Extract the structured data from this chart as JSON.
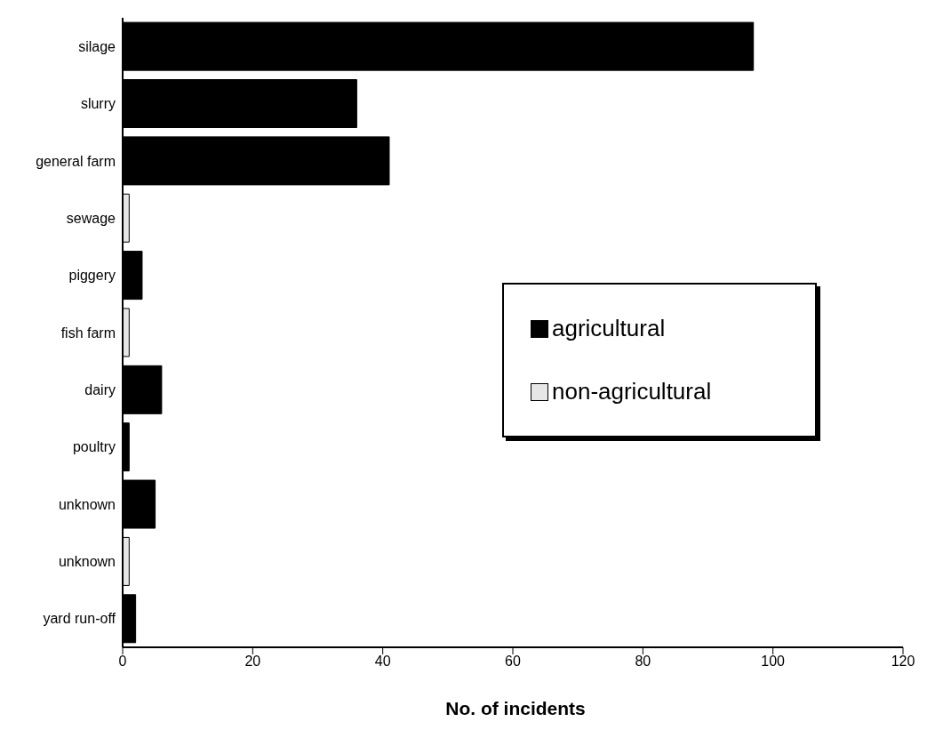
{
  "chart_data": {
    "type": "bar",
    "orientation": "horizontal",
    "stacked": true,
    "xlabel": "No. of incidents",
    "categories": [
      "silage",
      "slurry",
      "general farm",
      "sewage",
      "piggery",
      "fish farm",
      "dairy",
      "poultry",
      "unknown",
      "unknown",
      "yard run-off"
    ],
    "series": [
      {
        "name": "agricultural",
        "color": "#000000",
        "values": [
          97,
          36,
          41,
          null,
          3,
          null,
          6,
          1,
          5,
          null,
          2
        ]
      },
      {
        "name": "non-agricultural",
        "color": "#e6e6e6",
        "values": [
          null,
          null,
          null,
          1,
          null,
          1,
          null,
          null,
          null,
          1,
          null
        ]
      }
    ],
    "xlim": [
      0,
      120
    ],
    "xticks": [
      0,
      20,
      40,
      60,
      80,
      100,
      120
    ],
    "legend": "right"
  }
}
